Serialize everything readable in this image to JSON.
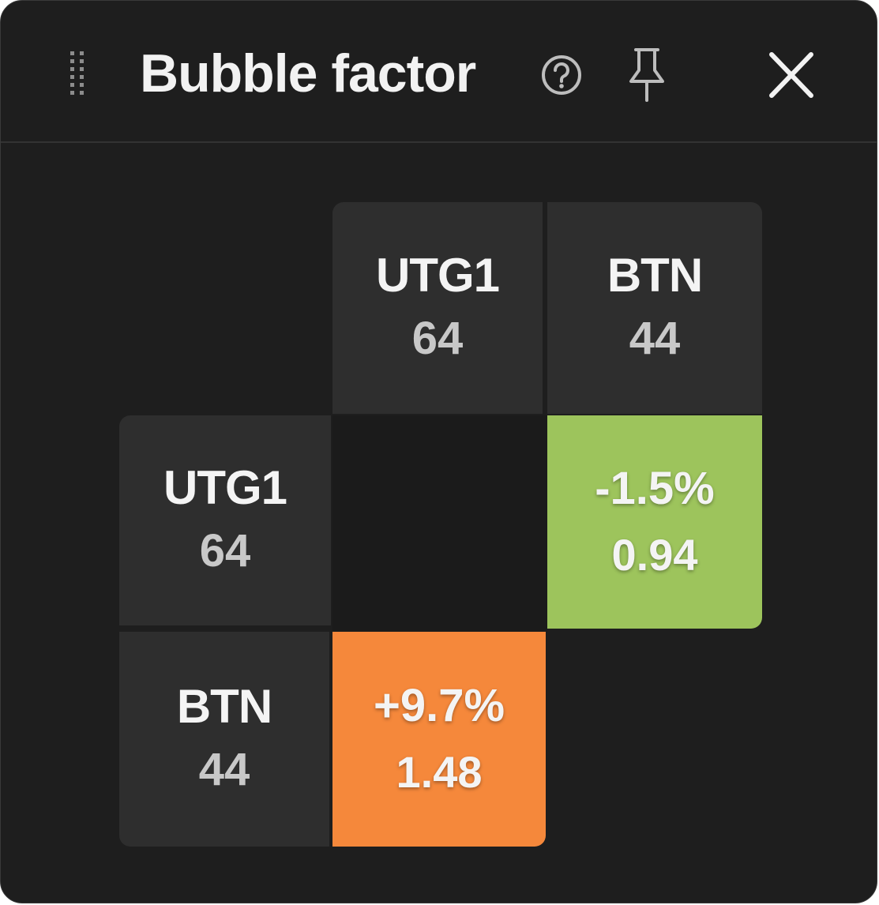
{
  "window": {
    "title": "Bubble factor",
    "icons": {
      "drag": "drag-handle-icon",
      "help": "help-circle-icon",
      "pin": "pin-icon",
      "close": "close-icon"
    }
  },
  "matrix": {
    "columns": [
      {
        "name": "UTG1",
        "stack": "64"
      },
      {
        "name": "BTN",
        "stack": "44"
      }
    ],
    "rows": [
      {
        "name": "UTG1",
        "stack": "64"
      },
      {
        "name": "BTN",
        "stack": "44"
      }
    ],
    "cells": {
      "utg1_vs_btn": {
        "pct": "-1.5%",
        "bf": "0.94",
        "color": "#9dc45c"
      },
      "btn_vs_utg1": {
        "pct": "+9.7%",
        "bf": "1.48",
        "color": "#f5883b"
      }
    }
  },
  "colors": {
    "panel_bg": "#1e1e1e",
    "header_cell_bg": "#2e2e2e",
    "text": "#f4f4f4",
    "muted_text": "#c8c8c8"
  }
}
